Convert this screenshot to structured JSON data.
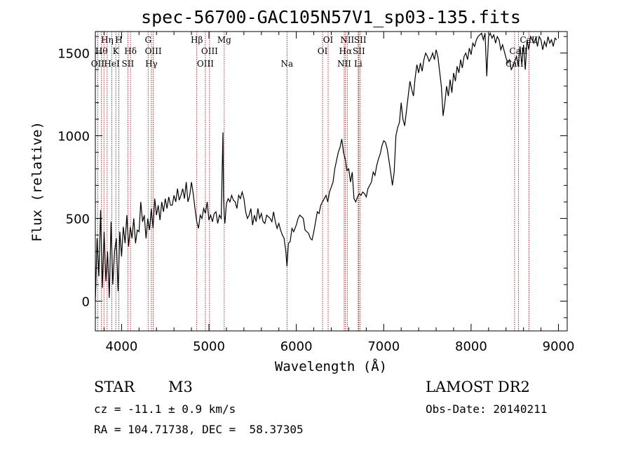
{
  "chart_data": {
    "type": "line",
    "title": "spec-56700-GAC105N57V1_sp03-135.fits",
    "xlabel": "Wavelength (Å)",
    "ylabel": "Flux (relative)",
    "xlim": [
      3700,
      9100
    ],
    "ylim": [
      -180,
      1630
    ],
    "xticks": [
      4000,
      5000,
      6000,
      7000,
      8000,
      9000
    ],
    "yticks": [
      0,
      500,
      1000,
      1500
    ],
    "grid": false,
    "line_color": "#000000",
    "marker_color": "#8b0000",
    "series": [
      {
        "x": [
          3700,
          3720,
          3740,
          3760,
          3780,
          3800,
          3820,
          3840,
          3860,
          3880,
          3900,
          3920,
          3940,
          3960,
          3980,
          4000,
          4020,
          4040,
          4060,
          4080,
          4100,
          4120,
          4140,
          4160,
          4180,
          4200,
          4220,
          4240,
          4260,
          4280,
          4300,
          4320,
          4340,
          4360,
          4380,
          4400,
          4420,
          4440,
          4460,
          4480,
          4500,
          4520,
          4540,
          4560,
          4580,
          4600,
          4620,
          4640,
          4660,
          4680,
          4700,
          4720,
          4740,
          4760,
          4780,
          4800,
          4820,
          4840,
          4860,
          4880,
          4900,
          4920,
          4940,
          4960,
          4980,
          5000,
          5020,
          5040,
          5060,
          5080,
          5100,
          5120,
          5140,
          5160,
          5167,
          5175,
          5183,
          5200,
          5220,
          5240,
          5260,
          5280,
          5300,
          5320,
          5340,
          5360,
          5380,
          5400,
          5420,
          5440,
          5460,
          5480,
          5500,
          5520,
          5540,
          5560,
          5580,
          5600,
          5620,
          5640,
          5660,
          5680,
          5700,
          5720,
          5740,
          5760,
          5780,
          5800,
          5820,
          5840,
          5860,
          5880,
          5893,
          5910,
          5930,
          5950,
          5970,
          6000,
          6020,
          6040,
          6060,
          6080,
          6100,
          6120,
          6140,
          6160,
          6180,
          6200,
          6220,
          6240,
          6260,
          6280,
          6300,
          6320,
          6340,
          6360,
          6380,
          6400,
          6420,
          6440,
          6460,
          6480,
          6500,
          6520,
          6540,
          6563,
          6580,
          6600,
          6620,
          6640,
          6660,
          6680,
          6700,
          6720,
          6740,
          6760,
          6780,
          6800,
          6820,
          6840,
          6860,
          6880,
          6900,
          6920,
          6940,
          6960,
          6980,
          7000,
          7020,
          7040,
          7060,
          7080,
          7100,
          7120,
          7140,
          7160,
          7180,
          7200,
          7220,
          7240,
          7260,
          7280,
          7300,
          7320,
          7340,
          7360,
          7380,
          7400,
          7420,
          7440,
          7460,
          7480,
          7500,
          7520,
          7540,
          7560,
          7580,
          7600,
          7620,
          7640,
          7660,
          7680,
          7700,
          7720,
          7740,
          7760,
          7780,
          7800,
          7820,
          7840,
          7860,
          7880,
          7900,
          7920,
          7940,
          7960,
          7980,
          8000,
          8020,
          8040,
          8060,
          8080,
          8100,
          8120,
          8140,
          8160,
          8180,
          8200,
          8220,
          8240,
          8260,
          8280,
          8300,
          8320,
          8340,
          8360,
          8380,
          8400,
          8420,
          8440,
          8460,
          8480,
          8500,
          8520,
          8540,
          8560,
          8580,
          8600,
          8620,
          8640,
          8660,
          8680,
          8700,
          8720,
          8740,
          8760,
          8780,
          8800,
          8820,
          8840,
          8860,
          8880,
          8900,
          8920,
          8940,
          8960,
          8980
        ],
        "y": [
          0,
          380,
          150,
          550,
          80,
          420,
          120,
          300,
          20,
          480,
          100,
          300,
          380,
          60,
          420,
          270,
          450,
          350,
          520,
          330,
          450,
          380,
          500,
          350,
          430,
          420,
          600,
          480,
          520,
          380,
          500,
          430,
          560,
          440,
          620,
          520,
          580,
          490,
          600,
          540,
          620,
          560,
          630,
          580,
          580,
          640,
          600,
          680,
          610,
          640,
          680,
          620,
          720,
          600,
          640,
          720,
          650,
          560,
          480,
          440,
          520,
          500,
          560,
          530,
          600,
          490,
          520,
          480,
          530,
          540,
          470,
          520,
          500,
          1020,
          640,
          520,
          470,
          590,
          620,
          600,
          640,
          610,
          600,
          560,
          640,
          620,
          660,
          620,
          540,
          500,
          520,
          560,
          460,
          520,
          480,
          560,
          500,
          530,
          480,
          470,
          520,
          510,
          500,
          480,
          540,
          480,
          440,
          470,
          430,
          400,
          380,
          300,
          210,
          350,
          360,
          440,
          420,
          460,
          500,
          520,
          510,
          500,
          430,
          420,
          410,
          380,
          370,
          420,
          480,
          540,
          530,
          580,
          600,
          620,
          640,
          600,
          660,
          690,
          720,
          800,
          850,
          900,
          930,
          980,
          900,
          850,
          790,
          800,
          720,
          780,
          620,
          600,
          630,
          650,
          640,
          660,
          650,
          630,
          680,
          700,
          720,
          780,
          760,
          820,
          860,
          890,
          940,
          970,
          960,
          920,
          850,
          780,
          700,
          780,
          1000,
          1050,
          1080,
          1200,
          1100,
          1060,
          1150,
          1240,
          1330,
          1280,
          1240,
          1350,
          1430,
          1380,
          1440,
          1390,
          1460,
          1500,
          1480,
          1450,
          1470,
          1500,
          1460,
          1520,
          1480,
          1390,
          1300,
          1120,
          1200,
          1300,
          1240,
          1340,
          1260,
          1380,
          1330,
          1420,
          1380,
          1460,
          1410,
          1480,
          1500,
          1460,
          1530,
          1490,
          1560,
          1540,
          1580,
          1600,
          1610,
          1620,
          1580,
          1620,
          1360,
          1600,
          1620,
          1590,
          1610,
          1560,
          1600,
          1580,
          1520,
          1550,
          1510,
          1470,
          1440,
          1460,
          1400,
          1420,
          1450,
          1480,
          1420,
          1540,
          1430,
          1550,
          1400,
          1580,
          1520,
          1600,
          1580,
          1560,
          1590,
          1540,
          1600,
          1580,
          1520,
          1570,
          1540,
          1600,
          1560,
          1580,
          1540,
          1590,
          1580
        ]
      }
    ],
    "line_markers": [
      {
        "x": 3727,
        "label": "OII",
        "row": 3
      },
      {
        "x": 3770,
        "label": "Hθ",
        "row": 2
      },
      {
        "x": 3798,
        "label": "",
        "row": 0
      },
      {
        "x": 3835,
        "label": "Hη",
        "row": 1
      },
      {
        "x": 3889,
        "label": "HeI",
        "row": 3
      },
      {
        "x": 3934,
        "label": "K",
        "row": 2
      },
      {
        "x": 3969,
        "label": "H",
        "row": 1
      },
      {
        "x": 4072,
        "label": "SII",
        "row": 3
      },
      {
        "x": 4102,
        "label": "Hδ",
        "row": 2
      },
      {
        "x": 4304,
        "label": "G",
        "row": 1
      },
      {
        "x": 4341,
        "label": "Hγ",
        "row": 3
      },
      {
        "x": 4363,
        "label": "OIII",
        "row": 2
      },
      {
        "x": 4861,
        "label": "Hβ",
        "row": 1
      },
      {
        "x": 4959,
        "label": "OIII",
        "row": 3
      },
      {
        "x": 5007,
        "label": "OIII",
        "row": 2
      },
      {
        "x": 5175,
        "label": "Mg",
        "row": 1
      },
      {
        "x": 5893,
        "label": "Na",
        "row": 3
      },
      {
        "x": 6300,
        "label": "OI",
        "row": 2
      },
      {
        "x": 6364,
        "label": "OI",
        "row": 1
      },
      {
        "x": 6548,
        "label": "NII",
        "row": 3
      },
      {
        "x": 6563,
        "label": "Hα",
        "row": 2
      },
      {
        "x": 6583,
        "label": "NII",
        "row": 1
      },
      {
        "x": 6708,
        "label": "Li",
        "row": 3
      },
      {
        "x": 6716,
        "label": "SII",
        "row": 2
      },
      {
        "x": 6731,
        "label": "SII",
        "row": 1
      },
      {
        "x": 8498,
        "label": "CaII",
        "row": 3
      },
      {
        "x": 8542,
        "label": "CaII",
        "row": 2
      },
      {
        "x": 8662,
        "label": "CaII",
        "row": 1
      }
    ]
  },
  "footer": {
    "object_class": "STAR",
    "subclass": "M3",
    "survey": "LAMOST DR2",
    "redshift_line": "cz = -11.1 ± 0.9 km/s",
    "obs_date_line": "Obs-Date: 20140211",
    "coords_line": "RA = 104.71738, DEC =  58.37305"
  }
}
